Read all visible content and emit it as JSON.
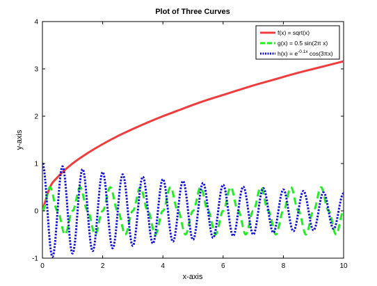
{
  "chart_data": {
    "type": "line",
    "title": "Plot of Three Curves",
    "xlabel": "x-axis",
    "ylabel": "y-axis",
    "xlim": [
      0,
      10
    ],
    "ylim": [
      -1,
      4
    ],
    "xticks": [
      0,
      2,
      4,
      6,
      8,
      10
    ],
    "yticks": [
      -1,
      0,
      1,
      2,
      3,
      4
    ],
    "grid": false,
    "legend_position": "top-right",
    "series": [
      {
        "name": "f(x) = sqrt(x)",
        "color": "#f03c3c",
        "style": "solid",
        "x": [
          0,
          0.25,
          0.5,
          1,
          1.5,
          2,
          2.5,
          3,
          3.5,
          4,
          4.5,
          5,
          5.5,
          6,
          6.5,
          7,
          7.5,
          8,
          8.5,
          9,
          9.5,
          10
        ],
        "values": [
          0,
          0.5,
          0.71,
          1,
          1.22,
          1.41,
          1.58,
          1.73,
          1.87,
          2,
          2.12,
          2.24,
          2.35,
          2.45,
          2.55,
          2.65,
          2.74,
          2.83,
          2.92,
          3,
          3.08,
          3.16
        ]
      },
      {
        "name": "g(x) = 0.5 sin(2π x)",
        "color": "#22ee22",
        "style": "dashed",
        "x": [
          0,
          0.25,
          0.5,
          0.75,
          1,
          1.25,
          1.5,
          1.75,
          2,
          2.25,
          2.5,
          2.75,
          3,
          3.25,
          3.5,
          3.75,
          4,
          4.25,
          4.5,
          4.75,
          5,
          5.25,
          5.5,
          5.75,
          6,
          6.25,
          6.5,
          6.75,
          7,
          7.25,
          7.5,
          7.75,
          8,
          8.25,
          8.5,
          8.75,
          9,
          9.25,
          9.5,
          9.75,
          10
        ],
        "values": [
          0,
          0.5,
          0,
          -0.5,
          0,
          0.5,
          0,
          -0.5,
          0,
          0.5,
          0,
          -0.5,
          0,
          0.5,
          0,
          -0.5,
          0,
          0.5,
          0,
          -0.5,
          0,
          0.5,
          0,
          -0.5,
          0,
          0.5,
          0,
          -0.5,
          0,
          0.5,
          0,
          -0.5,
          0,
          0.5,
          0,
          -0.5,
          0,
          0.5,
          0,
          -0.5,
          0
        ]
      },
      {
        "name": "h(x) = e^{-0.1x} cos(3πx)",
        "name_base": "h(x) = e",
        "name_sup": "-0.1x",
        "name_tail": " cos(3πx)",
        "color": "#1010dd",
        "style": "dotted",
        "x": [
          0,
          0.333,
          0.667,
          1,
          1.333,
          1.667,
          2,
          2.333,
          2.667,
          3,
          3.333,
          3.667,
          4,
          4.333,
          4.667,
          5,
          5.333,
          5.667,
          6,
          6.333,
          6.667,
          7,
          7.333,
          7.667,
          8,
          8.333,
          8.667,
          9,
          9.333,
          9.667,
          10
        ],
        "values": [
          1,
          -0.97,
          0.94,
          -0.9,
          0.88,
          -0.85,
          0.82,
          -0.79,
          0.77,
          -0.74,
          0.72,
          -0.69,
          0.67,
          -0.65,
          0.63,
          -0.61,
          0.59,
          -0.57,
          0.55,
          -0.53,
          0.51,
          -0.5,
          0.48,
          -0.46,
          0.45,
          -0.43,
          0.42,
          -0.41,
          0.39,
          -0.38,
          0.37
        ]
      }
    ]
  }
}
